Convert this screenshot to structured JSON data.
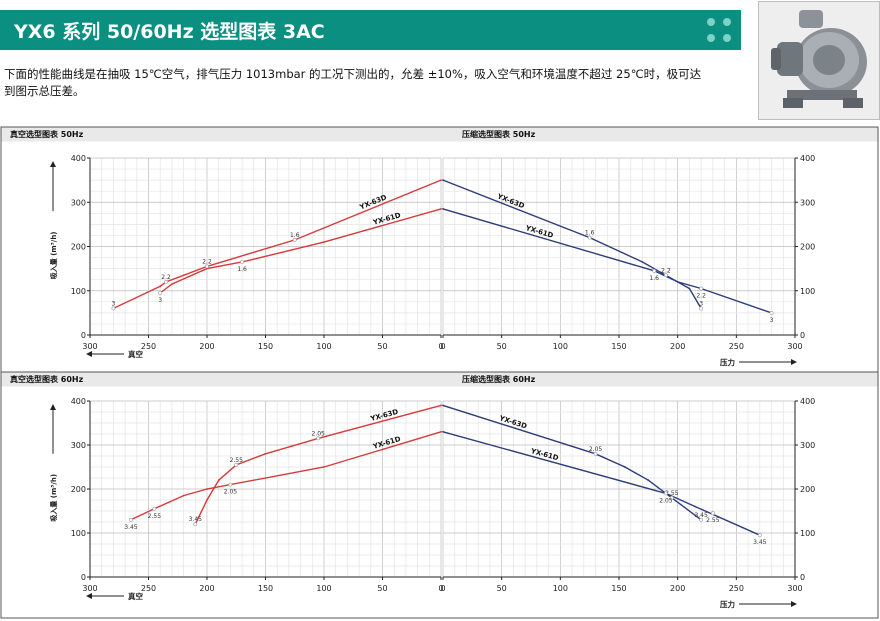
{
  "header": {
    "title": "YX6 系列 50/60Hz 选型图表 3AC",
    "description": "下面的性能曲线是在抽吸 15℃空气，排气压力 1013mbar 的工况下测出的，允差 ±10%，吸入空气和环境温度不超过 25℃时，极可达到图示总压差。"
  },
  "colors": {
    "banner": "#0b8f80",
    "vacuum_curve": "#d83a3a",
    "pressure_curve": "#2c3d7a"
  },
  "icons": {
    "product_photo": "side-channel-blower-photo"
  },
  "chart_data": [
    {
      "type": "line",
      "title": "真空选型图表 50Hz",
      "xlabel": "真空",
      "ylabel": "吸入量 (m³/h)",
      "xlim": [
        300,
        0
      ],
      "ylim": [
        0,
        400
      ],
      "x_ticks": [
        "300",
        "250",
        "200",
        "150",
        "100",
        "50",
        "0"
      ],
      "y_ticks": [
        "0",
        "100",
        "200",
        "300",
        "400"
      ],
      "series": [
        {
          "name": "YX-63D",
          "x": [
            280,
            240,
            235,
            220,
            200,
            125,
            0
          ],
          "y": [
            60,
            110,
            120,
            135,
            155,
            215,
            350
          ]
        },
        {
          "name": "YX-61D",
          "x": [
            240,
            230,
            200,
            170,
            100,
            0
          ],
          "y": [
            95,
            115,
            150,
            165,
            210,
            285
          ]
        }
      ],
      "annotations": [
        {
          "series": 0,
          "x": 280,
          "y": 60,
          "text": "3"
        },
        {
          "series": 0,
          "x": 235,
          "y": 120,
          "text": "2.2"
        },
        {
          "series": 0,
          "x": 200,
          "y": 155,
          "text": "2.2"
        },
        {
          "series": 0,
          "x": 125,
          "y": 215,
          "text": "1.6"
        },
        {
          "series": 1,
          "x": 240,
          "y": 95,
          "text": "3"
        },
        {
          "series": 1,
          "x": 170,
          "y": 165,
          "text": "1.6"
        }
      ]
    },
    {
      "type": "line",
      "title": "压缩选型图表 50Hz",
      "xlabel": "压力",
      "ylabel": "",
      "xlim": [
        0,
        300
      ],
      "ylim": [
        0,
        400
      ],
      "x_ticks": [
        "0",
        "50",
        "100",
        "150",
        "200",
        "250",
        "300"
      ],
      "y_ticks": [
        "0",
        "100",
        "200",
        "300",
        "400"
      ],
      "series": [
        {
          "name": "YX-63D",
          "x": [
            0,
            125,
            170,
            190,
            210,
            220
          ],
          "y": [
            350,
            220,
            165,
            135,
            105,
            60
          ]
        },
        {
          "name": "YX-61D",
          "x": [
            0,
            180,
            200,
            220,
            280
          ],
          "y": [
            285,
            145,
            120,
            105,
            50
          ]
        }
      ],
      "annotations": [
        {
          "series": 0,
          "x": 125,
          "y": 220,
          "text": "1.6"
        },
        {
          "series": 0,
          "x": 190,
          "y": 135,
          "text": "2.2"
        },
        {
          "series": 0,
          "x": 220,
          "y": 60,
          "text": "3"
        },
        {
          "series": 1,
          "x": 180,
          "y": 145,
          "text": "1.6"
        },
        {
          "series": 1,
          "x": 220,
          "y": 105,
          "text": "2.2"
        },
        {
          "series": 1,
          "x": 280,
          "y": 50,
          "text": "3"
        }
      ]
    },
    {
      "type": "line",
      "title": "真空选型图表 60Hz",
      "xlabel": "真空",
      "ylabel": "吸入量 (m³/h)",
      "xlim": [
        300,
        0
      ],
      "ylim": [
        0,
        400
      ],
      "x_ticks": [
        "300",
        "250",
        "200",
        "150",
        "100",
        "50",
        "0"
      ],
      "y_ticks": [
        "0",
        "100",
        "200",
        "300",
        "400"
      ],
      "series": [
        {
          "name": "YX-63D",
          "x": [
            210,
            200,
            190,
            175,
            150,
            105,
            0
          ],
          "y": [
            120,
            175,
            220,
            255,
            280,
            315,
            390
          ]
        },
        {
          "name": "YX-61D",
          "x": [
            265,
            245,
            220,
            200,
            180,
            100,
            0
          ],
          "y": [
            130,
            155,
            185,
            200,
            210,
            250,
            330
          ]
        }
      ],
      "annotations": [
        {
          "series": 0,
          "x": 210,
          "y": 120,
          "text": "3.45"
        },
        {
          "series": 0,
          "x": 175,
          "y": 255,
          "text": "2.55"
        },
        {
          "series": 0,
          "x": 105,
          "y": 315,
          "text": "2.05"
        },
        {
          "series": 1,
          "x": 265,
          "y": 130,
          "text": "3.45"
        },
        {
          "series": 1,
          "x": 245,
          "y": 155,
          "text": "2.55"
        },
        {
          "series": 1,
          "x": 180,
          "y": 210,
          "text": "2.05"
        }
      ]
    },
    {
      "type": "line",
      "title": "压缩选型图表 60Hz",
      "xlabel": "压力",
      "ylabel": "",
      "xlim": [
        0,
        300
      ],
      "ylim": [
        0,
        400
      ],
      "x_ticks": [
        "0",
        "50",
        "100",
        "150",
        "200",
        "250",
        "300"
      ],
      "y_ticks": [
        "0",
        "100",
        "200",
        "300",
        "400"
      ],
      "series": [
        {
          "name": "YX-63D",
          "x": [
            0,
            130,
            155,
            175,
            195,
            220
          ],
          "y": [
            390,
            280,
            250,
            220,
            180,
            130
          ]
        },
        {
          "name": "YX-61D",
          "x": [
            0,
            190,
            215,
            270
          ],
          "y": [
            330,
            190,
            160,
            95
          ]
        }
      ],
      "annotations": [
        {
          "series": 0,
          "x": 130,
          "y": 280,
          "text": "2.05"
        },
        {
          "series": 0,
          "x": 195,
          "y": 180,
          "text": "2.55"
        },
        {
          "series": 0,
          "x": 220,
          "y": 130,
          "text": "3.45"
        },
        {
          "series": 1,
          "x": 190,
          "y": 190,
          "text": "2.05"
        },
        {
          "series": 1,
          "x": 230,
          "y": 145,
          "text": "2.55"
        },
        {
          "series": 1,
          "x": 270,
          "y": 95,
          "text": "3.45"
        }
      ]
    }
  ]
}
